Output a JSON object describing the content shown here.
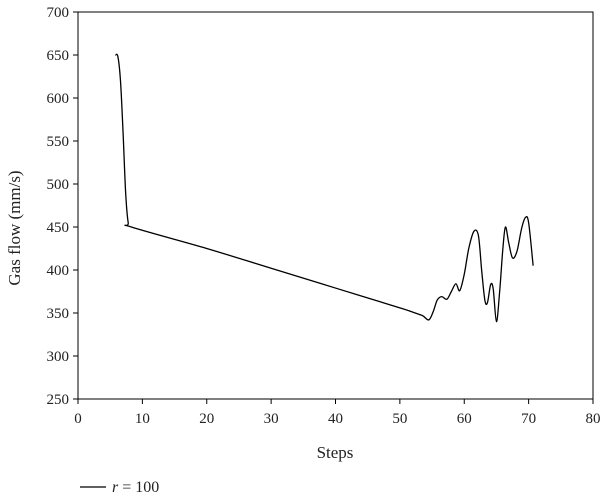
{
  "chart_data": {
    "type": "line",
    "title": "",
    "xlabel": "Steps",
    "ylabel": "Gas flow (mm/s)",
    "xlim": [
      0,
      80
    ],
    "ylim": [
      250,
      700
    ],
    "xticks": [
      0,
      10,
      20,
      30,
      40,
      50,
      60,
      70,
      80
    ],
    "yticks": [
      250,
      300,
      350,
      400,
      450,
      500,
      550,
      600,
      650,
      700
    ],
    "grid": false,
    "legend_position": "bottom-left",
    "series": [
      {
        "legend": {
          "var": "r",
          "rest": " = 100"
        },
        "color": "#000000",
        "points": [
          [
            5.8,
            650
          ],
          [
            6.2,
            648
          ],
          [
            6.6,
            620
          ],
          [
            7.0,
            560
          ],
          [
            7.4,
            490
          ],
          [
            7.8,
            455
          ],
          [
            8.3,
            450
          ],
          [
            20,
            425
          ],
          [
            30,
            402
          ],
          [
            40,
            379
          ],
          [
            50,
            356
          ],
          [
            52,
            351
          ],
          [
            53.5,
            347
          ],
          [
            54.5,
            342
          ],
          [
            55.2,
            352
          ],
          [
            55.8,
            365
          ],
          [
            56.5,
            369
          ],
          [
            57.3,
            366
          ],
          [
            58.0,
            375
          ],
          [
            58.7,
            384
          ],
          [
            59.3,
            376
          ],
          [
            60.0,
            395
          ],
          [
            60.7,
            425
          ],
          [
            61.5,
            445
          ],
          [
            62.2,
            440
          ],
          [
            62.7,
            400
          ],
          [
            63.2,
            365
          ],
          [
            63.6,
            362
          ],
          [
            64.1,
            383
          ],
          [
            64.5,
            378
          ],
          [
            65.0,
            340
          ],
          [
            65.5,
            375
          ],
          [
            66.0,
            425
          ],
          [
            66.4,
            450
          ],
          [
            66.9,
            432
          ],
          [
            67.5,
            414
          ],
          [
            68.2,
            422
          ],
          [
            68.9,
            448
          ],
          [
            69.5,
            461
          ],
          [
            70.0,
            455
          ],
          [
            70.7,
            405
          ]
        ]
      }
    ]
  }
}
